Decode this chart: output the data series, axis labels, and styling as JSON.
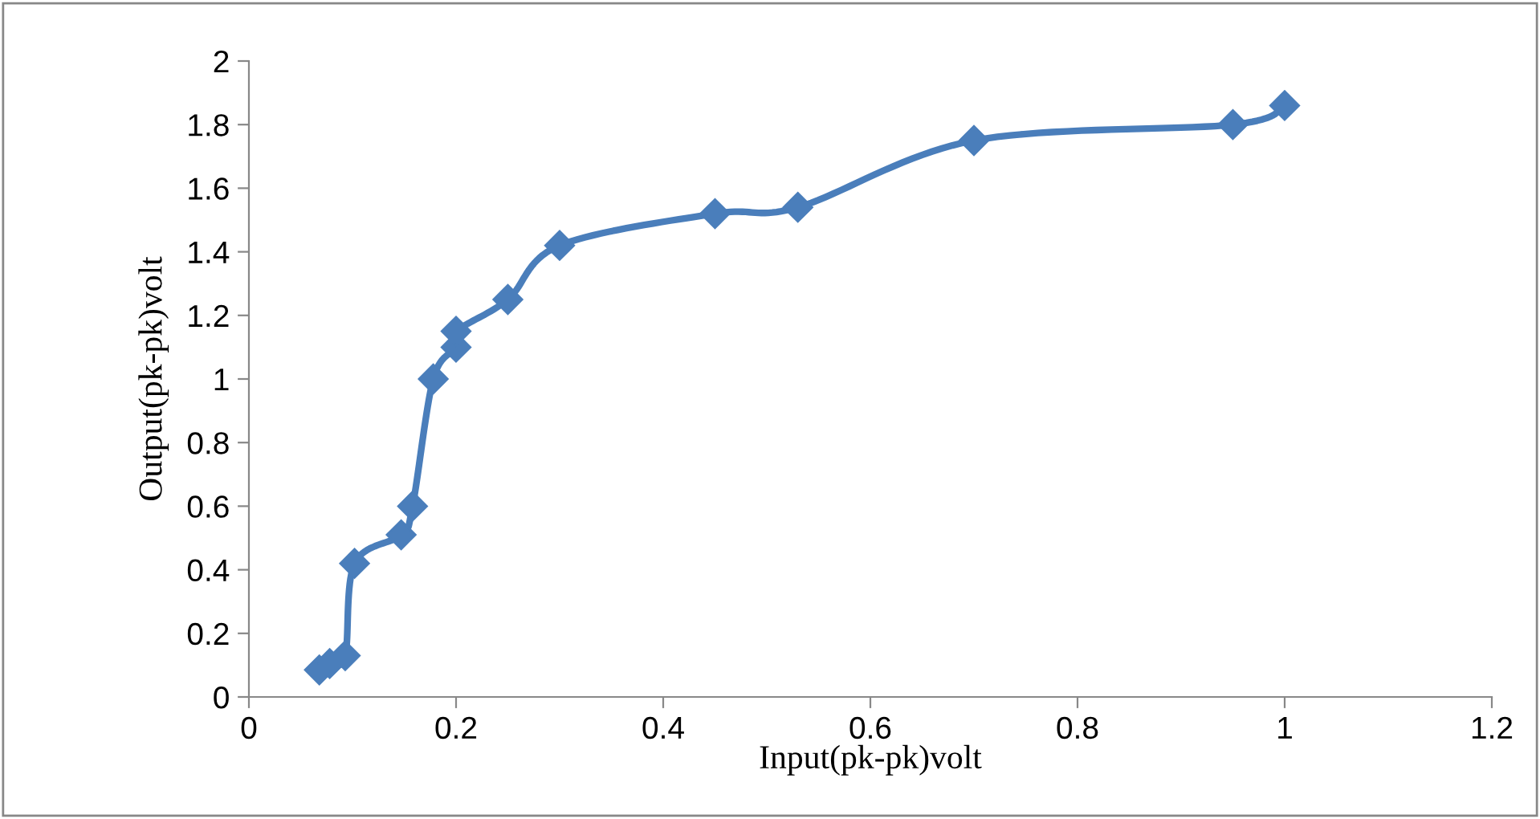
{
  "chart_data": {
    "type": "line",
    "xlabel": "Input(pk-pk)volt",
    "ylabel": "Output(pk-pk)volt",
    "x": [
      0.068,
      0.078,
      0.093,
      0.102,
      0.147,
      0.158,
      0.178,
      0.2,
      0.2,
      0.25,
      0.3,
      0.45,
      0.53,
      0.7,
      0.95,
      1.0
    ],
    "series": [
      {
        "color": "#4a7ebb",
        "values": [
          0.085,
          0.105,
          0.13,
          0.42,
          0.51,
          0.6,
          1.0,
          1.1,
          1.15,
          1.25,
          1.42,
          1.52,
          1.54,
          1.75,
          1.8,
          1.86
        ]
      }
    ],
    "xlim": [
      0,
      1.2
    ],
    "xticks": [
      0,
      0.2,
      0.4,
      0.6,
      0.8,
      1,
      1.2
    ],
    "ylim": [
      0,
      2
    ],
    "yticks": [
      0,
      0.2,
      0.4,
      0.6,
      0.8,
      1,
      1.2,
      1.4,
      1.6,
      1.8,
      2
    ],
    "grid": false,
    "legend": false,
    "marker": "diamond",
    "line_style": "solid"
  }
}
